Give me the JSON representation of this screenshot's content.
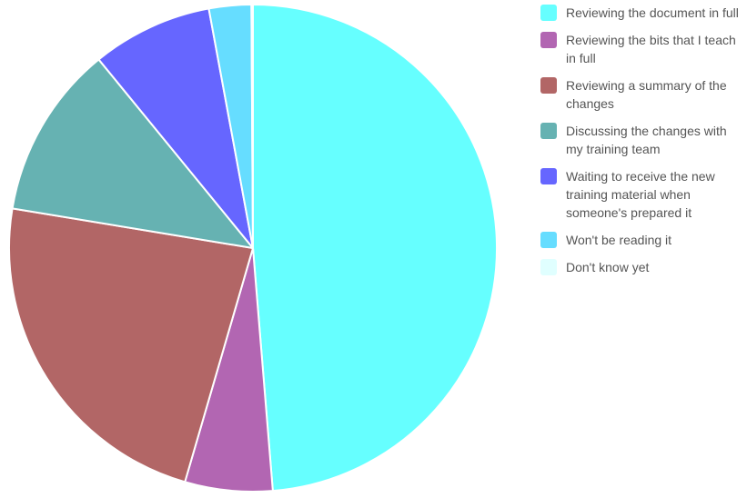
{
  "chart_data": {
    "type": "pie",
    "legend_position": "right",
    "slices": [
      {
        "label": "Reviewing the document in full",
        "value": 48.7,
        "color": "#66ffff"
      },
      {
        "label": "Reviewing the bits that I teach in full",
        "value": 5.8,
        "color": "#b266b2"
      },
      {
        "label": "Reviewing a summary of the changes",
        "value": 23.1,
        "color": "#b26666"
      },
      {
        "label": "Discussing the changes with my training team",
        "value": 11.5,
        "color": "#66b2b2"
      },
      {
        "label": "Waiting to receive the new training material when someone's prepared it",
        "value": 8.0,
        "color": "#6666ff"
      },
      {
        "label": "Won't be reading it",
        "value": 2.8,
        "color": "#66ddff"
      },
      {
        "label": "Don't know yet",
        "value": 0.1,
        "color": "#e0ffff"
      }
    ]
  }
}
